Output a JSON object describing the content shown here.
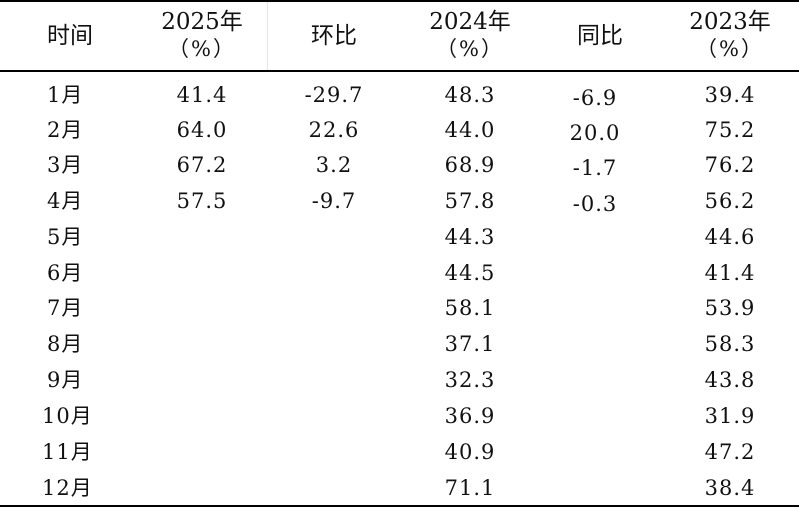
{
  "header": {
    "time": "时间",
    "y2025": "2025年",
    "y2025_unit": "（%）",
    "hb": "环比",
    "y2024": "2024年",
    "y2024_unit": "（%）",
    "tb": "同比",
    "y2023": "2023年",
    "y2023_unit": "（%）"
  },
  "rows": [
    {
      "month": "1月",
      "y2025": "41.4",
      "hb": "-29.7",
      "y2024": "48.3",
      "tb": "-6.9",
      "y2023": "39.4"
    },
    {
      "month": "2月",
      "y2025": "64.0",
      "hb": "22.6",
      "y2024": "44.0",
      "tb": "20.0",
      "y2023": "75.2"
    },
    {
      "month": "3月",
      "y2025": "67.2",
      "hb": "3.2",
      "y2024": "68.9",
      "tb": "-1.7",
      "y2023": "76.2"
    },
    {
      "month": "4月",
      "y2025": "57.5",
      "hb": "-9.7",
      "y2024": "57.8",
      "tb": "-0.3",
      "y2023": "56.2"
    },
    {
      "month": "5月",
      "y2025": "",
      "hb": "",
      "y2024": "44.3",
      "tb": "",
      "y2023": "44.6"
    },
    {
      "month": "6月",
      "y2025": "",
      "hb": "",
      "y2024": "44.5",
      "tb": "",
      "y2023": "41.4"
    },
    {
      "month": "7月",
      "y2025": "",
      "hb": "",
      "y2024": "58.1",
      "tb": "",
      "y2023": "53.9"
    },
    {
      "month": "8月",
      "y2025": "",
      "hb": "",
      "y2024": "37.1",
      "tb": "",
      "y2023": "58.3"
    },
    {
      "month": "9月",
      "y2025": "",
      "hb": "",
      "y2024": "32.3",
      "tb": "",
      "y2023": "43.8"
    },
    {
      "month": "10月",
      "y2025": "",
      "hb": "",
      "y2024": "36.9",
      "tb": "",
      "y2023": "31.9"
    },
    {
      "month": "11月",
      "y2025": "",
      "hb": "",
      "y2024": "40.9",
      "tb": "",
      "y2023": "47.2"
    },
    {
      "month": "12月",
      "y2025": "",
      "hb": "",
      "y2024": "71.1",
      "tb": "",
      "y2023": "38.4"
    }
  ]
}
